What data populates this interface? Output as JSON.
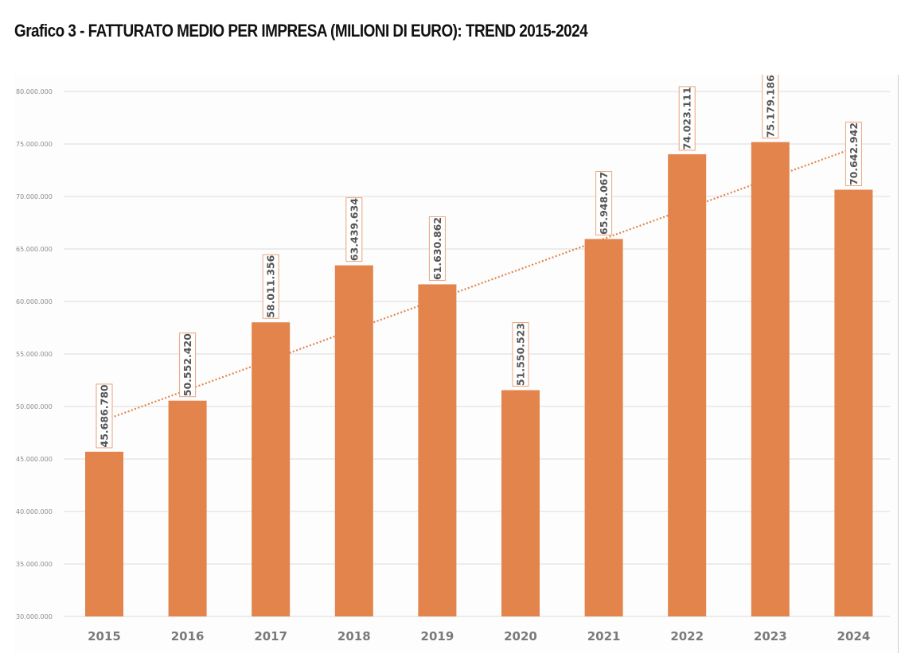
{
  "title": "Grafico 3 - FATTURATO MEDIO PER IMPRESA (MILIONI DI EURO): TREND 2015-2024",
  "colors": {
    "bar": "#E2844B",
    "trend": "#E2844B",
    "grid": "#dcdcdc",
    "label_border": "#E9A47B"
  },
  "chart_data": {
    "type": "bar",
    "title": "Grafico 3 - FATTURATO MEDIO PER IMPRESA (MILIONI DI EURO): TREND 2015-2024",
    "xlabel": "",
    "ylabel": "",
    "categories": [
      "2015",
      "2016",
      "2017",
      "2018",
      "2019",
      "2020",
      "2021",
      "2022",
      "2023",
      "2024"
    ],
    "series": [
      {
        "name": "Fatturato medio per impresa",
        "values": [
          45686780,
          50552420,
          58011356,
          63439634,
          61630862,
          51550523,
          65948067,
          74023111,
          75179186,
          70642942
        ],
        "data_labels": [
          "45.686.780",
          "50.552.420",
          "58.011.356",
          "63.439.634",
          "61.630.862",
          "51.550.523",
          "65.948.067",
          "74.023.111",
          "75.179.186",
          "70.642.942"
        ]
      }
    ],
    "trendline": {
      "type": "linear",
      "style": "dotted",
      "start_value": 48700000,
      "end_value": 74600000
    },
    "ylim": [
      30000000,
      80000000
    ],
    "yticks": [
      30000000,
      35000000,
      40000000,
      45000000,
      50000000,
      55000000,
      60000000,
      65000000,
      70000000,
      75000000,
      80000000
    ],
    "ytick_labels": [
      "30.000.000",
      "35.000.000",
      "40.000.000",
      "45.000.000",
      "50.000.000",
      "55.000.000",
      "60.000.000",
      "65.000.000",
      "70.000.000",
      "75.000.000",
      "80.000.000"
    ],
    "grid": true,
    "legend": "none"
  }
}
